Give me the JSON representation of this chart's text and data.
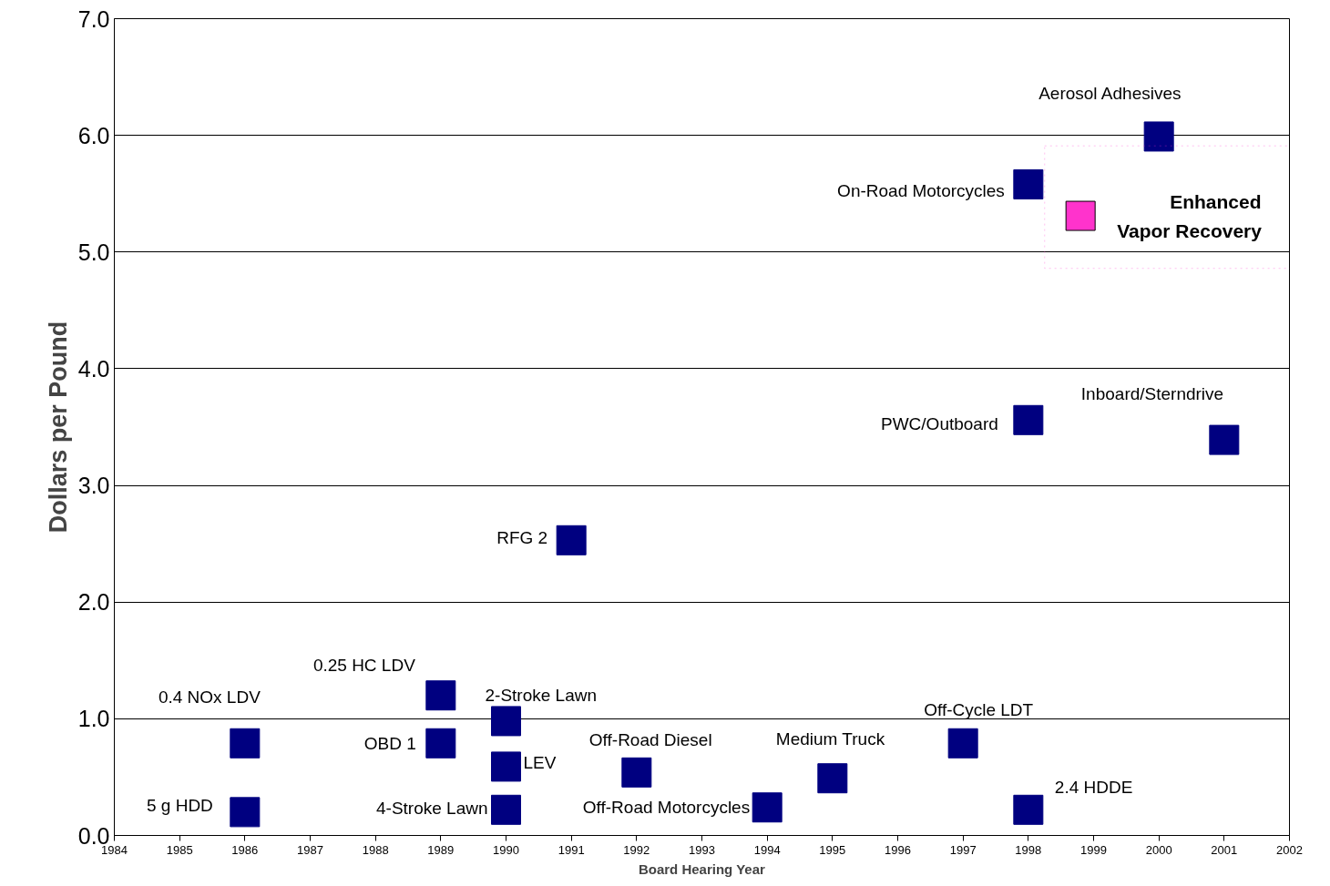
{
  "chart_data": {
    "type": "scatter",
    "xlabel": "Board Hearing Year",
    "ylabel": "Dollars per Pound",
    "xlim": [
      1984,
      2002
    ],
    "xticks": [
      1984,
      1985,
      1986,
      1987,
      1988,
      1989,
      1990,
      1991,
      1992,
      1993,
      1994,
      1995,
      1996,
      1997,
      1998,
      1999,
      2000,
      2001,
      2002
    ],
    "ylim": [
      0,
      7
    ],
    "yticks": [
      {
        "value": 0,
        "label": "0.0"
      },
      {
        "value": 1,
        "label": "1.0"
      },
      {
        "value": 2,
        "label": "2.0"
      },
      {
        "value": 3,
        "label": "3.0"
      },
      {
        "value": 4,
        "label": "4.0"
      },
      {
        "value": 5,
        "label": "5.0"
      },
      {
        "value": 6,
        "label": "6.0"
      },
      {
        "value": 7,
        "label": "7.0"
      }
    ],
    "grid": "y",
    "marker": "square",
    "legend": false,
    "annotations": [
      {
        "text": "0.4 NOx LDV",
        "x": 1986,
        "y": 0.79
      },
      {
        "text": "5 g HDD",
        "x": 1986,
        "y": 0.2
      },
      {
        "text": "0.25 HC LDV",
        "x": 1989,
        "y": 1.2
      },
      {
        "text": "OBD 1",
        "x": 1989,
        "y": 0.79
      },
      {
        "text": "2-Stroke Lawn",
        "x": 1990,
        "y": 0.98
      },
      {
        "text": "LEV",
        "x": 1990,
        "y": 0.59
      },
      {
        "text": "4-Stroke Lawn",
        "x": 1990,
        "y": 0.22
      },
      {
        "text": "RFG 2",
        "x": 1991,
        "y": 2.53
      },
      {
        "text": "Off-Road Diesel",
        "x": 1992,
        "y": 0.54
      },
      {
        "text": "Off-Road Motorcycles",
        "x": 1994,
        "y": 0.24
      },
      {
        "text": "Medium Truck",
        "x": 1995,
        "y": 0.49
      },
      {
        "text": "Off-Cycle LDT",
        "x": 1997,
        "y": 0.79
      },
      {
        "text": "On-Road Motorcycles",
        "x": 1998,
        "y": 5.58
      },
      {
        "text": "PWC/Outboard",
        "x": 1998,
        "y": 3.56
      },
      {
        "text": "2.4 HDDE",
        "x": 1998,
        "y": 0.22
      },
      {
        "text": "Aerosol Adhesives",
        "x": 2000,
        "y": 5.99
      },
      {
        "text": "Inboard/Sterndrive",
        "x": 2001,
        "y": 3.39
      }
    ],
    "series": [
      {
        "color": "#000080",
        "x": [
          1986,
          1986,
          1989,
          1989,
          1990,
          1990,
          1990,
          1991,
          1992,
          1994,
          1995,
          1997,
          1998,
          1998,
          1998,
          2000,
          2001
        ],
        "values": [
          0.79,
          0.2,
          1.2,
          0.79,
          0.98,
          0.59,
          0.22,
          2.53,
          0.54,
          0.24,
          0.49,
          0.79,
          5.58,
          3.56,
          0.22,
          5.99,
          3.39
        ]
      },
      {
        "name": "Enhanced Vapor Recovery",
        "color": "#ff33cc",
        "x": [
          1998.8
        ],
        "values": [
          5.31
        ]
      }
    ]
  }
}
